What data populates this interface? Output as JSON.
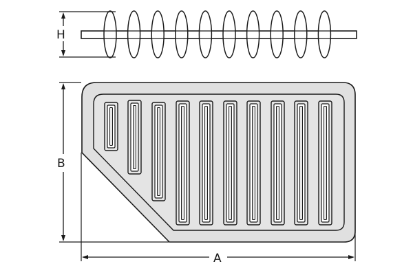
{
  "dimensions": {
    "height_label": "H",
    "b_label": "B",
    "a_label": "A"
  },
  "side_view": {
    "pleat_count": 10
  },
  "top_view": {
    "pleat_count": 10
  }
}
